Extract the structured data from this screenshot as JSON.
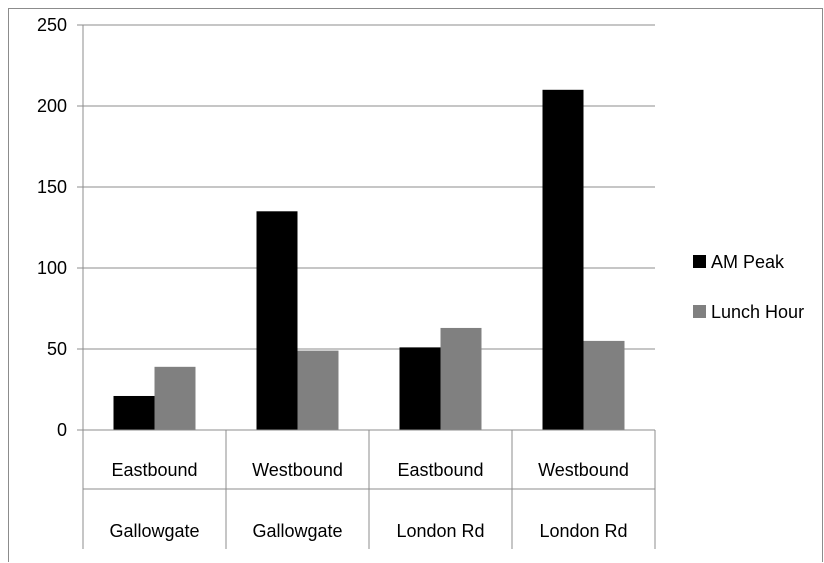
{
  "chart_data": {
    "type": "bar",
    "categories": [
      [
        "Eastbound",
        "Gallowgate"
      ],
      [
        "Westbound",
        "Gallowgate"
      ],
      [
        "Eastbound",
        "London Rd"
      ],
      [
        "Westbound",
        "London Rd"
      ]
    ],
    "series": [
      {
        "name": "AM Peak",
        "values": [
          21,
          135,
          51,
          210
        ],
        "color": "#000000"
      },
      {
        "name": "Lunch Hour",
        "values": [
          39,
          49,
          63,
          55
        ],
        "color": "#808080"
      }
    ],
    "ylim": [
      0,
      250
    ],
    "yticks": [
      0,
      50,
      100,
      150,
      200,
      250
    ],
    "grid": true,
    "legend": "right"
  }
}
